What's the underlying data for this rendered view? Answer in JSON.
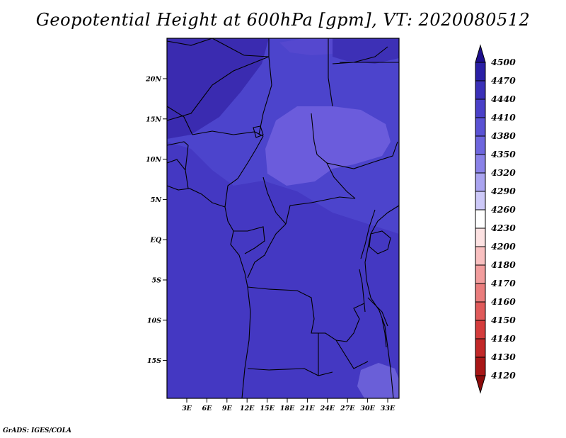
{
  "title": "Geopotential Height at 600hPa [gpm], VT: 2020080512",
  "footer": "GrADS: IGES/COLA",
  "map": {
    "lat_labels": [
      "20N",
      "15N",
      "10N",
      "5N",
      "EQ",
      "5S",
      "10S",
      "15S"
    ],
    "lon_labels": [
      "3E",
      "6E",
      "9E",
      "12E",
      "15E",
      "18E",
      "21E",
      "24E",
      "27E",
      "30E",
      "33E"
    ],
    "fill_colors": {
      "base": "#4438c2",
      "mid": "#4c44cc",
      "north": "#3a2bb0",
      "high": "#6b5cdc",
      "southeast": "#6a5fd8"
    }
  },
  "colorbar": {
    "levels": [
      "4500",
      "4470",
      "4440",
      "4410",
      "4380",
      "4350",
      "4320",
      "4290",
      "4260",
      "4230",
      "4200",
      "4180",
      "4170",
      "4160",
      "4150",
      "4140",
      "4130",
      "4120"
    ],
    "colors": [
      "#1e0e8c",
      "#2a1fa5",
      "#3a30b8",
      "#4a40c8",
      "#5a52d4",
      "#6e66de",
      "#8a82e8",
      "#aaa4f0",
      "#cdc9f8",
      "#ffffff",
      "#fde2e2",
      "#f9c0c0",
      "#f29d9d",
      "#ea7d7d",
      "#e05a5a",
      "#d43c3c",
      "#c22828",
      "#a81616",
      "#8c0a0a"
    ]
  }
}
